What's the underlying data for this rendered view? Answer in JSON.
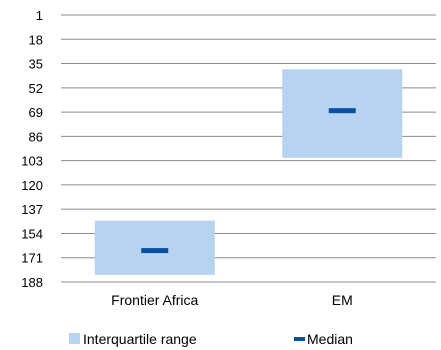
{
  "chart_data": {
    "type": "box",
    "y_axis": {
      "reversed": true,
      "range": [
        1,
        188
      ],
      "ticks": [
        1,
        18,
        35,
        52,
        69,
        86,
        103,
        120,
        137,
        154,
        171,
        188
      ],
      "grid": true
    },
    "categories": [
      "Frontier Africa",
      "EM"
    ],
    "series": [
      {
        "name": "Interquartile range",
        "q1": [
          145,
          39
        ],
        "q3": [
          183,
          101
        ]
      },
      {
        "name": "Median",
        "values": [
          166,
          68
        ]
      }
    ],
    "legend": {
      "position": "bottom",
      "items": [
        "Interquartile range",
        "Median"
      ]
    },
    "colors": {
      "box": "#b7d3f0",
      "median": "#0b4fa3",
      "grid": "#8c8c8c"
    }
  }
}
